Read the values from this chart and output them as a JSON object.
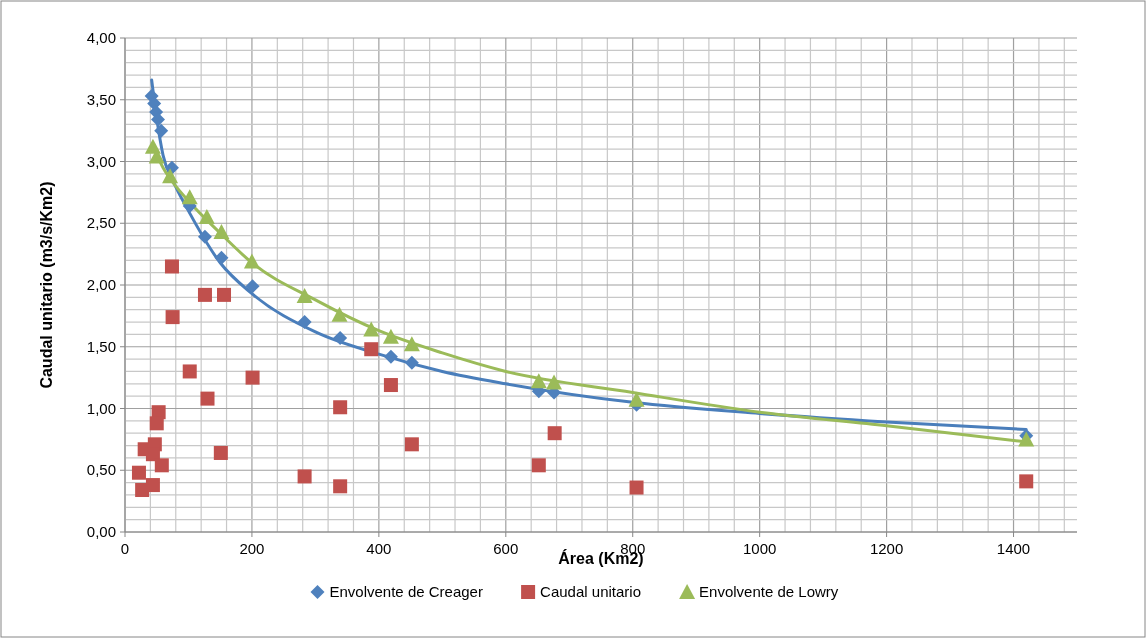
{
  "chart_data": {
    "type": "scatter",
    "xlabel": "Área (Km2)",
    "ylabel": "Caudal unitario (m3/s/Km2)",
    "xlim": [
      0,
      1500
    ],
    "xticks": [
      0,
      200,
      400,
      600,
      800,
      1000,
      1200,
      1400
    ],
    "ylim": [
      0,
      4
    ],
    "yticks": [
      {
        "value": 0,
        "label": "0,00"
      },
      {
        "value": 0.5,
        "label": "0,50"
      },
      {
        "value": 1,
        "label": "1,00"
      },
      {
        "value": 1.5,
        "label": "1,50"
      },
      {
        "value": 2,
        "label": "2,00"
      },
      {
        "value": 2.5,
        "label": "2,50"
      },
      {
        "value": 3,
        "label": "3,00"
      },
      {
        "value": 3.5,
        "label": "3,50"
      },
      {
        "value": 4,
        "label": "4,00"
      }
    ],
    "grid": true,
    "legend": "bottom",
    "series": [
      {
        "type": "line",
        "color": "#4a7ebb",
        "marker": "none",
        "x": [
          42,
          50,
          60,
          75,
          100,
          150,
          200,
          300,
          400,
          500,
          600,
          800,
          1000,
          1200,
          1420
        ],
        "values": [
          3.66,
          3.35,
          3.05,
          2.85,
          2.6,
          2.18,
          1.93,
          1.62,
          1.44,
          1.3,
          1.2,
          1.05,
          0.96,
          0.89,
          0.83
        ]
      },
      {
        "type": "line",
        "color": "#9bbb59",
        "marker": "none",
        "x": [
          44,
          60,
          80,
          100,
          150,
          200,
          300,
          400,
          500,
          600,
          800,
          1000,
          1200,
          1420
        ],
        "values": [
          3.12,
          2.95,
          2.8,
          2.68,
          2.42,
          2.18,
          1.88,
          1.63,
          1.45,
          1.3,
          1.13,
          0.97,
          0.86,
          0.73
        ]
      },
      {
        "name": "Envolvente de Creager",
        "color": "#4f81bd",
        "marker": "diamond",
        "x": [
          42,
          46,
          49,
          52,
          57,
          74,
          102,
          126,
          152,
          201,
          283,
          339,
          419,
          452,
          652,
          676,
          806,
          1420
        ],
        "values": [
          3.53,
          3.47,
          3.4,
          3.34,
          3.25,
          2.95,
          2.64,
          2.39,
          2.22,
          1.99,
          1.7,
          1.57,
          1.42,
          1.37,
          1.14,
          1.13,
          1.03,
          0.78
        ]
      },
      {
        "name": "Caudal unitario",
        "color": "#c0504d",
        "marker": "square",
        "x": [
          74,
          126,
          156,
          75,
          102,
          201,
          130,
          53,
          50,
          31,
          47,
          44,
          58,
          151,
          22,
          27,
          44,
          283,
          388,
          419,
          339,
          452,
          339,
          677,
          652,
          806,
          1420
        ],
        "values": [
          2.15,
          1.92,
          1.92,
          1.74,
          1.3,
          1.25,
          1.08,
          0.97,
          0.88,
          0.67,
          0.71,
          0.63,
          0.54,
          0.64,
          0.48,
          0.34,
          0.38,
          0.45,
          1.48,
          1.19,
          1.01,
          0.71,
          0.37,
          0.8,
          0.54,
          0.36,
          0.41
        ]
      },
      {
        "name": "Envolvente de Lowry",
        "color": "#9bbb59",
        "marker": "triangle",
        "x": [
          44,
          50,
          71,
          102,
          129,
          152,
          200,
          283,
          338,
          388,
          419,
          452,
          652,
          676,
          806,
          1420
        ],
        "values": [
          3.12,
          3.04,
          2.88,
          2.71,
          2.55,
          2.43,
          2.19,
          1.91,
          1.76,
          1.64,
          1.58,
          1.52,
          1.22,
          1.21,
          1.07,
          0.75
        ]
      }
    ]
  }
}
